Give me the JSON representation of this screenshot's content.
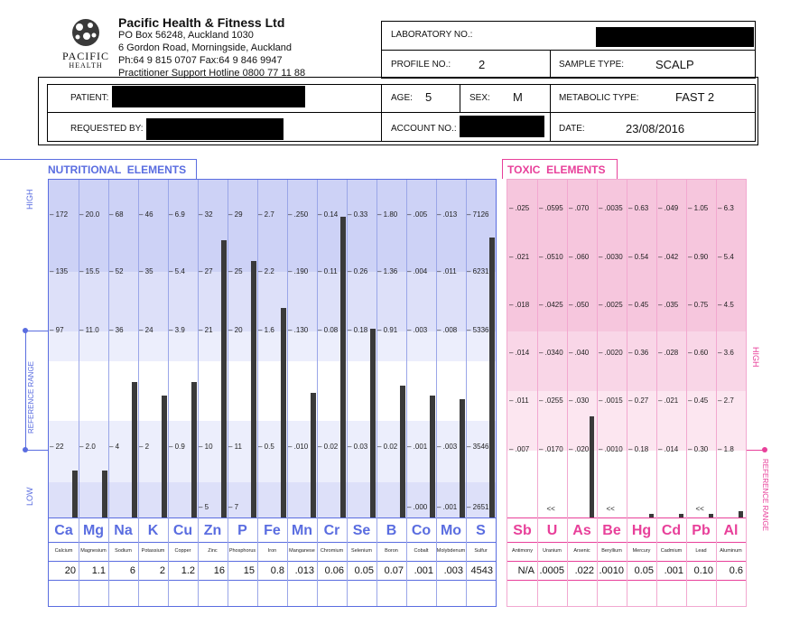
{
  "header": {
    "company": "Pacific Health & Fitness Ltd",
    "address_lines": [
      "PO Box 56248, Auckland 1030",
      "6 Gordon Road, Morningside, Auckland",
      "Ph:64 9 815 0707    Fax:64 9 846 9947",
      "Practitioner Support Hotline 0800 77 11 88"
    ],
    "logo_text": "PACIFIC",
    "logo_sub": "HEALTH",
    "laboratory_label": "LABORATORY NO.:",
    "profile_label": "PROFILE NO.:",
    "profile_value": "2",
    "sample_label": "SAMPLE TYPE:",
    "sample_value": "SCALP"
  },
  "patient_box": {
    "patient_label": "PATIENT:",
    "age_label": "AGE:",
    "age_value": "5",
    "sex_label": "SEX:",
    "sex_value": "M",
    "metabolic_label": "METABOLIC TYPE:",
    "metabolic_value": "FAST 2",
    "requested_label": "REQUESTED BY:",
    "account_label": "ACCOUNT NO.:",
    "date_label": "DATE:",
    "date_value": "23/08/2016"
  },
  "nutritional_title": "NUTRITIONAL  ELEMENTS",
  "toxic_title": "TOXIC  ELEMENTS",
  "side_labels": {
    "high": "HIGH",
    "low": "LOW",
    "reference_range": "REFERENCE RANGE",
    "toxic_high": "HIGH",
    "toxic_ref": "REFERENCE RANGE"
  },
  "colors": {
    "nutritional": "#5a6de0",
    "toxic": "#e8409a",
    "nutritional_band_dark": "#cdd2f6",
    "nutritional_band_mid": "#dde0f9",
    "nutritional_band_light": "#eceefc",
    "toxic_band_dark": "#f6c6dd",
    "toxic_band_mid": "#f9d6e7",
    "toxic_band_light": "#fce6f0"
  },
  "chart_data": [
    {
      "type": "bar",
      "title": "NUTRITIONAL  ELEMENTS",
      "categories": [
        "Ca",
        "Mg",
        "Na",
        "K",
        "Cu",
        "Zn",
        "P",
        "Fe",
        "Mn",
        "Cr",
        "Se",
        "B",
        "Co",
        "Mo",
        "S"
      ],
      "names": [
        "Calcium",
        "Magnesium",
        "Sodium",
        "Potassium",
        "Copper",
        "Zinc",
        "Phosphorus",
        "Iron",
        "Manganese",
        "Chromium",
        "Selenium",
        "Boron",
        "Cobalt",
        "Molybdenum",
        "Sulfur"
      ],
      "results": [
        "20",
        "1.1",
        "6",
        "2",
        "1.2",
        "16",
        "15",
        "0.8",
        ".013",
        "0.06",
        "0.05",
        "0.07",
        ".001",
        ".003",
        "4543"
      ],
      "scale_rows": [
        [
          "172",
          "20.0",
          "68",
          "46",
          "6.9",
          "32",
          "29",
          "2.7",
          ".250",
          "0.14",
          "0.33",
          "1.80",
          ".005",
          ".013",
          "7126"
        ],
        [
          "135",
          "15.5",
          "52",
          "35",
          "5.4",
          "27",
          "25",
          "2.2",
          ".190",
          "0.11",
          "0.26",
          "1.36",
          ".004",
          ".011",
          "6231"
        ],
        [
          "97",
          "11.0",
          "36",
          "24",
          "3.9",
          "21",
          "20",
          "1.6",
          ".130",
          "0.08",
          "0.18",
          "0.91",
          ".003",
          ".008",
          "5336"
        ],
        [
          "22",
          "2.0",
          "4",
          "2",
          "0.9",
          "10",
          "11",
          "0.5",
          ".010",
          "0.02",
          "0.03",
          "0.02",
          ".001",
          ".003",
          "3546"
        ]
      ],
      "low_row": [
        "",
        "",
        "",
        "",
        "",
        "5",
        "7",
        "",
        "",
        "",
        "",
        "",
        ".000",
        ".001",
        "2651"
      ],
      "bar_level": [
        0.14,
        0.14,
        0.4,
        0.36,
        0.4,
        0.82,
        0.76,
        0.62,
        0.37,
        0.89,
        0.56,
        0.39,
        0.36,
        0.35,
        0.83
      ]
    },
    {
      "type": "bar",
      "title": "TOXIC  ELEMENTS",
      "categories": [
        "Sb",
        "U",
        "As",
        "Be",
        "Hg",
        "Cd",
        "Pb",
        "Al"
      ],
      "names": [
        "Antimony",
        "Uranium",
        "Arsenic",
        "Beryllium",
        "Mercury",
        "Cadmium",
        "Lead",
        "Aluminum"
      ],
      "results": [
        "N/A",
        ".0005",
        ".022",
        ".0010",
        "0.05",
        ".001",
        "0.10",
        "0.6"
      ],
      "scale_rows": [
        [
          ".025",
          ".0595",
          ".070",
          ".0035",
          "0.63",
          ".049",
          "1.05",
          "6.3"
        ],
        [
          ".021",
          ".0510",
          ".060",
          ".0030",
          "0.54",
          ".042",
          "0.90",
          "5.4"
        ],
        [
          ".018",
          ".0425",
          ".050",
          ".0025",
          "0.45",
          ".035",
          "0.75",
          "4.5"
        ],
        [
          ".014",
          ".0340",
          ".040",
          ".0020",
          "0.36",
          ".028",
          "0.60",
          "3.6"
        ],
        [
          ".011",
          ".0255",
          ".030",
          ".0015",
          "0.27",
          ".021",
          "0.45",
          "2.7"
        ],
        [
          ".007",
          ".0170",
          ".020",
          ".0010",
          "0.18",
          ".014",
          "0.30",
          "1.8"
        ]
      ],
      "below_marks": [
        "",
        "<<",
        "",
        "<<",
        "",
        "",
        "<<",
        ""
      ],
      "bar_level": [
        0,
        0,
        0.3,
        0,
        0.01,
        0.01,
        0.01,
        0.02
      ]
    }
  ]
}
